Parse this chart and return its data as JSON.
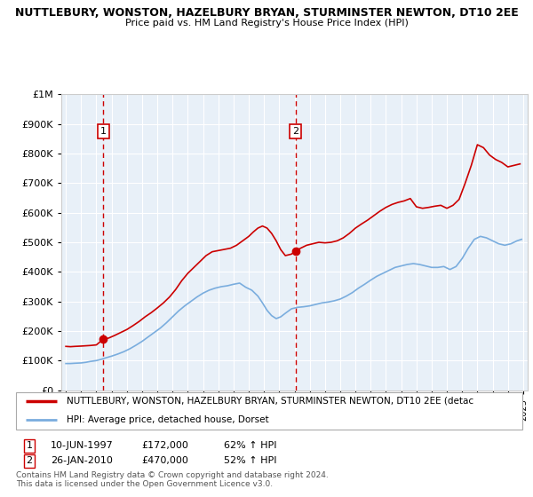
{
  "title1": "NUTTLEBURY, WONSTON, HAZELBURY BRYAN, STURMINSTER NEWTON, DT10 2EE",
  "title2": "Price paid vs. HM Land Registry's House Price Index (HPI)",
  "legend_line1": "NUTTLEBURY, WONSTON, HAZELBURY BRYAN, STURMINSTER NEWTON, DT10 2EE (detac",
  "legend_line2": "HPI: Average price, detached house, Dorset",
  "footnote1": "Contains HM Land Registry data © Crown copyright and database right 2024.",
  "footnote2": "This data is licensed under the Open Government Licence v3.0.",
  "annotation1": {
    "label": "1",
    "date": "10-JUN-1997",
    "price": "£172,000",
    "hpi": "62% ↑ HPI",
    "year": 1997.45
  },
  "annotation2": {
    "label": "2",
    "date": "26-JAN-2010",
    "price": "£470,000",
    "hpi": "52% ↑ HPI",
    "year": 2010.07
  },
  "red_line_color": "#cc0000",
  "blue_line_color": "#7aadde",
  "plot_bg": "#e8f0f8",
  "ylim": [
    0,
    1000000
  ],
  "xlim": [
    1994.7,
    2025.3
  ],
  "red_x": [
    1995.0,
    1995.3,
    1995.6,
    1996.0,
    1996.3,
    1996.6,
    1997.0,
    1997.45,
    1997.8,
    1998.2,
    1998.6,
    1999.0,
    1999.4,
    1999.8,
    2000.2,
    2000.6,
    2001.0,
    2001.4,
    2001.8,
    2002.2,
    2002.6,
    2003.0,
    2003.4,
    2003.8,
    2004.2,
    2004.6,
    2005.0,
    2005.4,
    2005.8,
    2006.2,
    2006.6,
    2007.0,
    2007.3,
    2007.6,
    2007.9,
    2008.2,
    2008.5,
    2008.8,
    2009.1,
    2009.4,
    2009.8,
    2010.07,
    2010.4,
    2010.8,
    2011.2,
    2011.6,
    2012.0,
    2012.4,
    2012.8,
    2013.2,
    2013.6,
    2014.0,
    2014.4,
    2014.8,
    2015.2,
    2015.6,
    2016.0,
    2016.4,
    2016.8,
    2017.2,
    2017.6,
    2018.0,
    2018.4,
    2018.8,
    2019.2,
    2019.6,
    2020.0,
    2020.4,
    2020.8,
    2021.2,
    2021.6,
    2022.0,
    2022.4,
    2022.8,
    2023.2,
    2023.6,
    2024.0,
    2024.4,
    2024.8
  ],
  "red_y": [
    148000,
    147000,
    148000,
    149000,
    150000,
    151000,
    153000,
    172000,
    176000,
    185000,
    195000,
    205000,
    218000,
    232000,
    248000,
    262000,
    278000,
    295000,
    315000,
    340000,
    370000,
    395000,
    415000,
    435000,
    455000,
    468000,
    472000,
    476000,
    480000,
    490000,
    505000,
    520000,
    535000,
    548000,
    555000,
    548000,
    530000,
    505000,
    475000,
    455000,
    460000,
    470000,
    480000,
    490000,
    495000,
    500000,
    498000,
    500000,
    505000,
    515000,
    530000,
    548000,
    562000,
    575000,
    590000,
    605000,
    618000,
    628000,
    635000,
    640000,
    648000,
    620000,
    615000,
    618000,
    622000,
    625000,
    615000,
    625000,
    645000,
    700000,
    760000,
    830000,
    820000,
    795000,
    780000,
    770000,
    755000,
    760000,
    765000
  ],
  "blue_x": [
    1995.0,
    1995.3,
    1995.6,
    1996.0,
    1996.3,
    1996.6,
    1997.0,
    1997.3,
    1997.6,
    1998.0,
    1998.4,
    1998.8,
    1999.2,
    1999.6,
    2000.0,
    2000.4,
    2000.8,
    2001.2,
    2001.6,
    2002.0,
    2002.4,
    2002.8,
    2003.2,
    2003.6,
    2004.0,
    2004.4,
    2004.8,
    2005.2,
    2005.6,
    2006.0,
    2006.4,
    2006.8,
    2007.2,
    2007.6,
    2007.9,
    2008.2,
    2008.5,
    2008.8,
    2009.1,
    2009.4,
    2009.8,
    2010.2,
    2010.6,
    2011.0,
    2011.4,
    2011.8,
    2012.2,
    2012.6,
    2013.0,
    2013.4,
    2013.8,
    2014.2,
    2014.6,
    2015.0,
    2015.4,
    2015.8,
    2016.2,
    2016.6,
    2017.0,
    2017.4,
    2017.8,
    2018.2,
    2018.6,
    2019.0,
    2019.4,
    2019.8,
    2020.2,
    2020.6,
    2021.0,
    2021.4,
    2021.8,
    2022.2,
    2022.6,
    2023.0,
    2023.4,
    2023.8,
    2024.2,
    2024.6,
    2024.9
  ],
  "blue_y": [
    90000,
    90000,
    91000,
    92000,
    94000,
    97000,
    100000,
    104000,
    109000,
    115000,
    122000,
    130000,
    140000,
    152000,
    165000,
    180000,
    195000,
    210000,
    228000,
    248000,
    268000,
    285000,
    300000,
    315000,
    328000,
    338000,
    345000,
    350000,
    353000,
    358000,
    362000,
    348000,
    338000,
    318000,
    295000,
    270000,
    252000,
    242000,
    248000,
    260000,
    275000,
    280000,
    282000,
    285000,
    290000,
    295000,
    298000,
    302000,
    308000,
    318000,
    330000,
    345000,
    358000,
    372000,
    385000,
    395000,
    405000,
    415000,
    420000,
    425000,
    428000,
    425000,
    420000,
    415000,
    415000,
    418000,
    408000,
    418000,
    445000,
    480000,
    510000,
    520000,
    515000,
    505000,
    495000,
    490000,
    495000,
    505000,
    510000
  ]
}
